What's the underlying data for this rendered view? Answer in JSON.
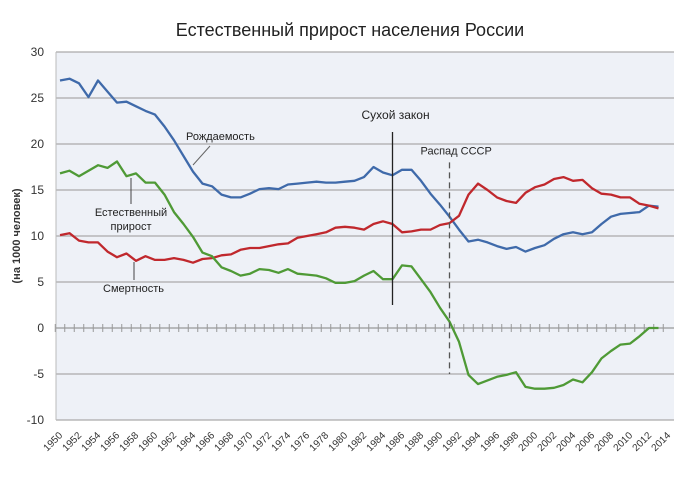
{
  "chart_data": {
    "type": "line",
    "title": "Естественный прирост населения России",
    "xlabel": "",
    "ylabel": "(на 1000 человек)",
    "ylim": [
      -10,
      30
    ],
    "yticks": [
      30,
      25,
      20,
      15,
      10,
      5,
      0,
      -5,
      -10
    ],
    "xlim": [
      1950,
      2014
    ],
    "xticks": [
      "1950",
      "1952",
      "1954",
      "1956",
      "1958",
      "1960",
      "1962",
      "1964",
      "1966",
      "1968",
      "1970",
      "1972",
      "1974",
      "1976",
      "1978",
      "1980",
      "1982",
      "1984",
      "1986",
      "1988",
      "1990",
      "1992",
      "1994",
      "1996",
      "1998",
      "2000",
      "2002",
      "2004",
      "2006",
      "2008",
      "2010",
      "2012",
      "2014"
    ],
    "grid": true,
    "x_start": 1950,
    "series": [
      {
        "name": "Рождаемость",
        "color": "#3f6aaa",
        "values": [
          26.9,
          27.1,
          26.6,
          25.1,
          26.9,
          25.7,
          24.5,
          24.6,
          24.1,
          23.6,
          23.2,
          21.9,
          20.4,
          18.7,
          17.0,
          15.7,
          15.4,
          14.5,
          14.2,
          14.2,
          14.6,
          15.1,
          15.2,
          15.1,
          15.6,
          15.7,
          15.8,
          15.9,
          15.8,
          15.8,
          15.9,
          16.0,
          16.4,
          17.5,
          16.9,
          16.6,
          17.2,
          17.2,
          16.0,
          14.6,
          13.4,
          12.1,
          10.7,
          9.4,
          9.6,
          9.3,
          8.9,
          8.6,
          8.8,
          8.3,
          8.7,
          9.0,
          9.7,
          10.2,
          10.4,
          10.2,
          10.4,
          11.3,
          12.1,
          12.4,
          12.5,
          12.6,
          13.3,
          13.2
        ]
      },
      {
        "name": "Смертность",
        "color": "#c0282d",
        "values": [
          10.1,
          10.3,
          9.5,
          9.3,
          9.3,
          8.3,
          7.7,
          8.1,
          7.3,
          7.8,
          7.4,
          7.4,
          7.6,
          7.4,
          7.1,
          7.5,
          7.6,
          7.9,
          8.0,
          8.5,
          8.7,
          8.7,
          8.9,
          9.1,
          9.2,
          9.8,
          10.0,
          10.2,
          10.4,
          10.9,
          11.0,
          10.9,
          10.7,
          11.3,
          11.6,
          11.3,
          10.4,
          10.5,
          10.7,
          10.7,
          11.2,
          11.4,
          12.2,
          14.5,
          15.7,
          15.0,
          14.2,
          13.8,
          13.6,
          14.7,
          15.3,
          15.6,
          16.2,
          16.4,
          16.0,
          16.1,
          15.2,
          14.6,
          14.5,
          14.2,
          14.2,
          13.5,
          13.3,
          13.0
        ]
      },
      {
        "name": "Естественный прирост",
        "color": "#4f9a36",
        "values": [
          16.8,
          17.1,
          16.5,
          17.1,
          17.7,
          17.4,
          18.1,
          16.5,
          16.8,
          15.8,
          15.8,
          14.5,
          12.6,
          11.3,
          9.9,
          8.2,
          7.8,
          6.6,
          6.2,
          5.7,
          5.9,
          6.4,
          6.3,
          6.0,
          6.4,
          5.9,
          5.8,
          5.7,
          5.4,
          4.9,
          4.9,
          5.1,
          5.7,
          6.2,
          5.3,
          5.3,
          6.8,
          6.7,
          5.3,
          3.9,
          2.2,
          0.7,
          -1.5,
          -5.1,
          -6.1,
          -5.7,
          -5.3,
          -5.1,
          -4.8,
          -6.4,
          -6.6,
          -6.6,
          -6.5,
          -6.2,
          -5.6,
          -5.9,
          -4.8,
          -3.3,
          -2.5,
          -1.8,
          -1.7,
          -0.9,
          0.0,
          0.0
        ]
      }
    ],
    "series_labels": {
      "birth": "Рождаемость",
      "natural_line1": "Естественный",
      "natural_line2": "прирост",
      "death": "Смертность"
    },
    "annotations": [
      {
        "text": "Сухой закон",
        "year": 1985,
        "style": "solid",
        "from": 21.3,
        "to": 2.5
      },
      {
        "text": "Распад СССР",
        "year": 1991,
        "style": "dashed",
        "from": 18,
        "to": -5
      }
    ]
  }
}
